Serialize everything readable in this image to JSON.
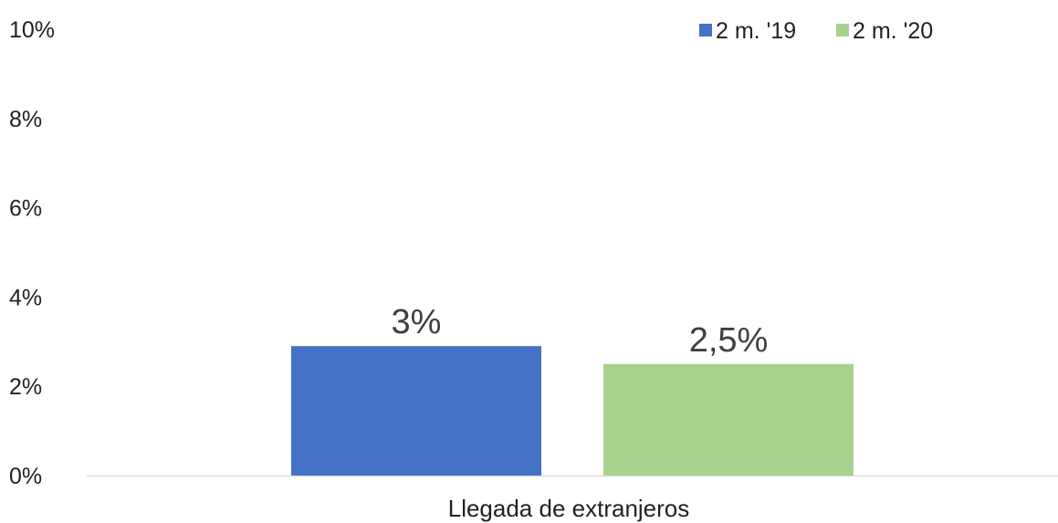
{
  "chart_data": {
    "type": "bar",
    "categories": [
      "Llegada de extranjeros"
    ],
    "series": [
      {
        "name": "2 m. '19",
        "values": [
          2.9
        ],
        "label": "3%",
        "color": "#4472C4"
      },
      {
        "name": "2 m. '20",
        "values": [
          2.5
        ],
        "label": "2,5%",
        "color": "#A9D18E"
      }
    ],
    "yticks": [
      "0%",
      "2%",
      "4%",
      "6%",
      "8%",
      "10%"
    ],
    "ylim": [
      0,
      10
    ],
    "grid": false,
    "legend_position": "top-right",
    "axis_color": "#D9D9D9"
  }
}
